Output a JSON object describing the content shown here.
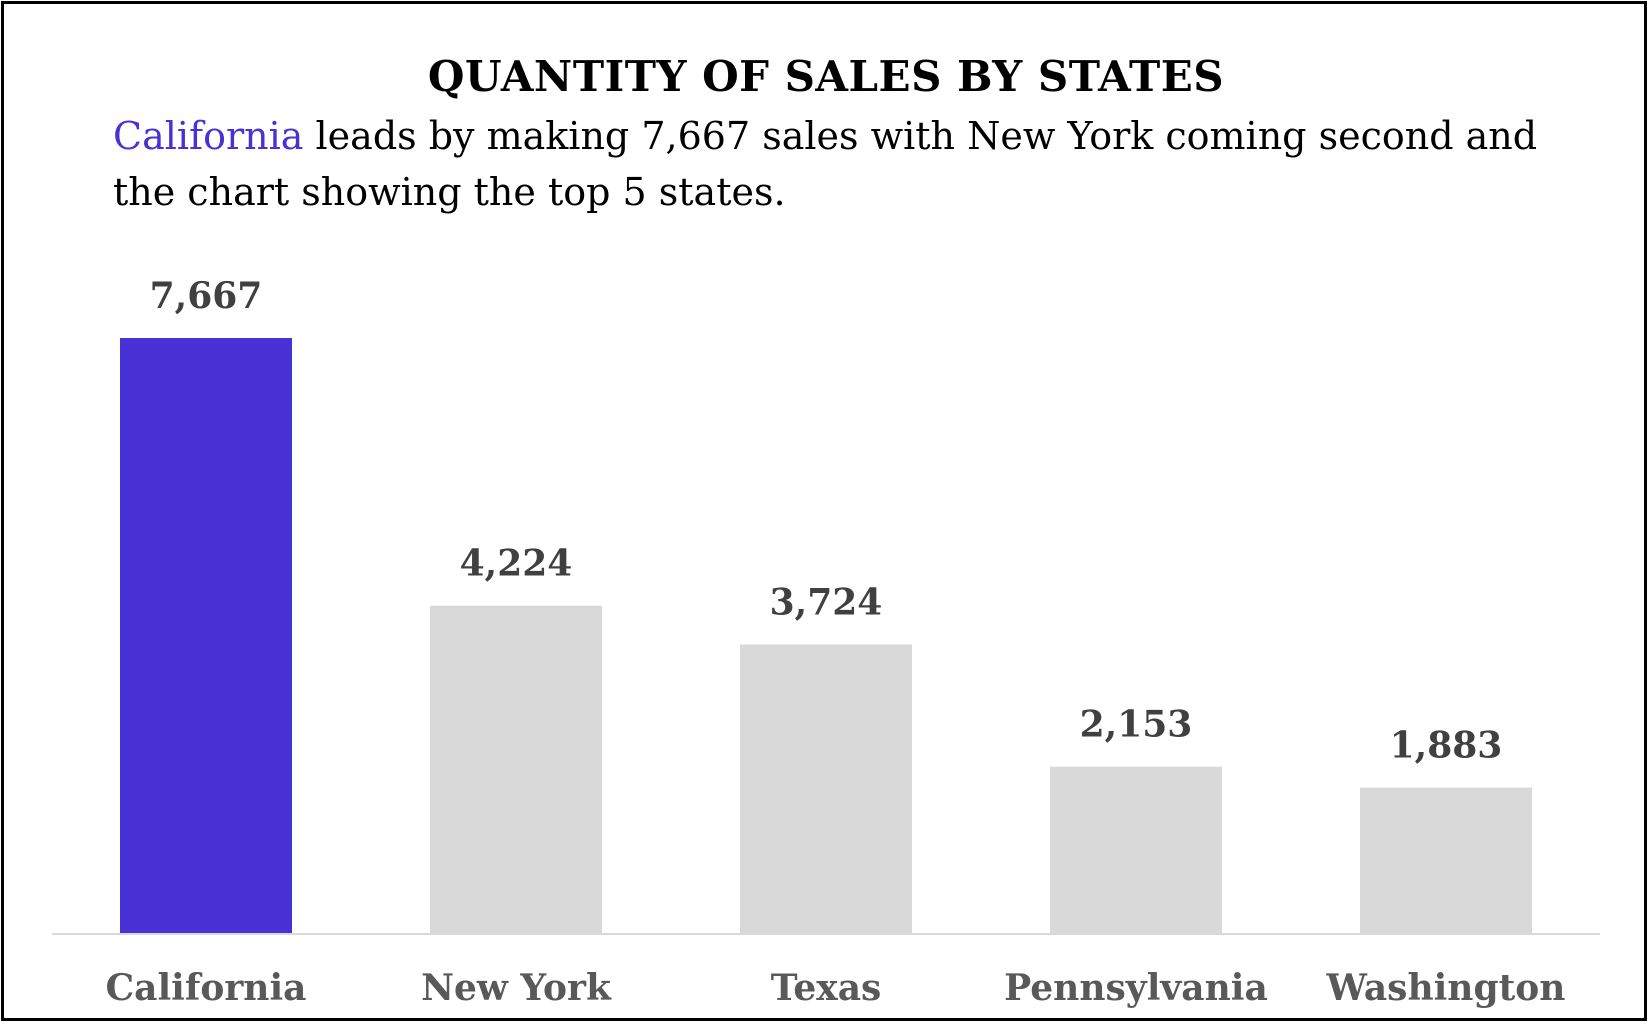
{
  "title": "QUANTITY OF SALES BY STATES",
  "subtitle": {
    "highlight": "California",
    "rest": " leads by making 7,667 sales with New York coming second and the chart showing the top 5 states."
  },
  "colors": {
    "highlight": "#4832d6",
    "bar": "#d9d9d9",
    "axis": "#d9d9d9"
  },
  "chart_data": {
    "type": "bar",
    "title": "QUANTITY OF SALES BY STATES",
    "categories": [
      "California",
      "New York",
      "Texas",
      "Pennsylvania",
      "Washington"
    ],
    "values": [
      7667,
      4224,
      3724,
      2153,
      1883
    ],
    "value_labels": [
      "7,667",
      "4,224",
      "3,724",
      "2,153",
      "1,883"
    ],
    "highlight_index": 0,
    "xlabel": "",
    "ylabel": "",
    "ylim": [
      0,
      7667
    ],
    "grid": false,
    "legend": "none"
  }
}
